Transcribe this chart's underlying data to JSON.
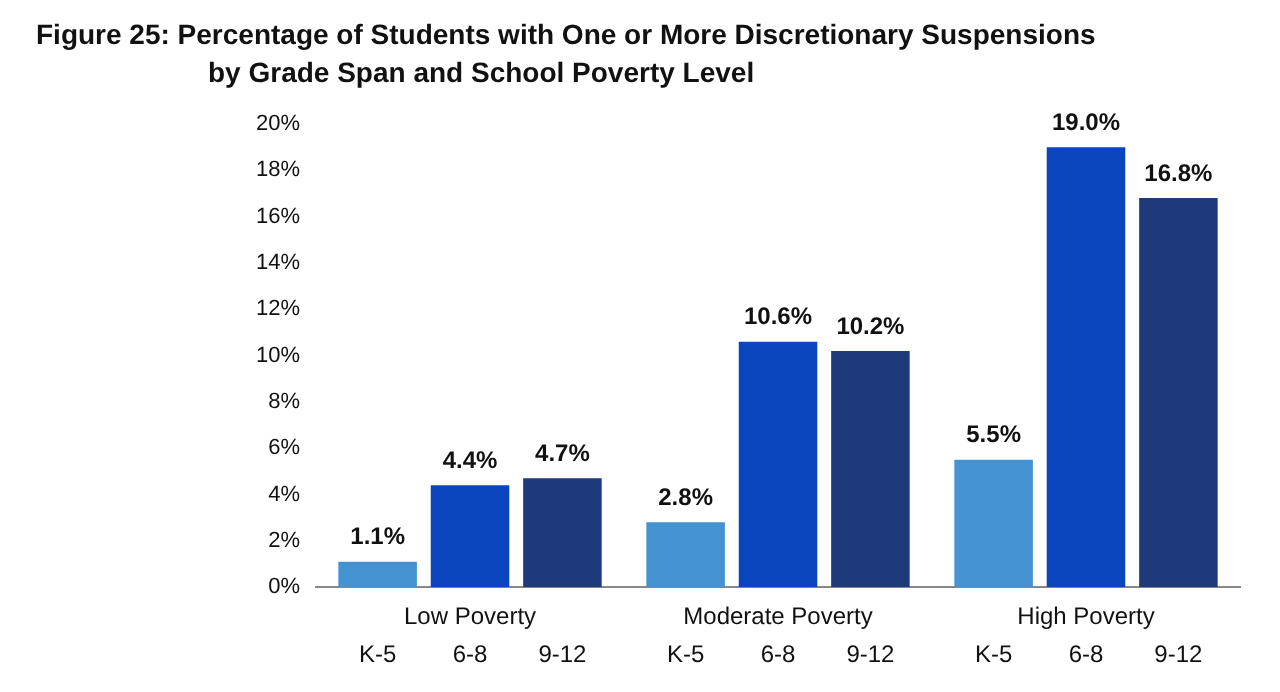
{
  "chart_data": {
    "type": "bar",
    "title": "Figure 25:  Percentage of Students with One or More Discretionary Suspensions by Grade Span and School Poverty Level",
    "categories": [
      "Low Poverty",
      "Moderate Poverty",
      "High Poverty"
    ],
    "series": [
      {
        "name": "K-5",
        "color": "#4592d3",
        "values": [
          1.1,
          2.8,
          5.5
        ]
      },
      {
        "name": "6-8",
        "color": "#0a45bd",
        "values": [
          4.4,
          10.6,
          19.0
        ]
      },
      {
        "name": "9-12",
        "color": "#1f3a7a",
        "values": [
          4.7,
          10.2,
          16.8
        ]
      }
    ],
    "value_labels": [
      [
        "1.1%",
        "2.8%",
        "5.5%"
      ],
      [
        "4.4%",
        "10.6%",
        "19.0%"
      ],
      [
        "4.7%",
        "10.2%",
        "16.8%"
      ]
    ],
    "ylim": [
      0,
      20
    ],
    "yticks": [
      {
        "value": 0,
        "label": "0%"
      },
      {
        "value": 2,
        "label": "2%"
      },
      {
        "value": 4,
        "label": "4%"
      },
      {
        "value": 6,
        "label": "6%"
      },
      {
        "value": 8,
        "label": "8%"
      },
      {
        "value": 10,
        "label": "10%"
      },
      {
        "value": 12,
        "label": "12%"
      },
      {
        "value": 14,
        "label": "14%"
      },
      {
        "value": 16,
        "label": "16%"
      },
      {
        "value": 18,
        "label": "18%"
      },
      {
        "value": 20,
        "label": "20%"
      }
    ],
    "grid": false,
    "legend": false
  }
}
